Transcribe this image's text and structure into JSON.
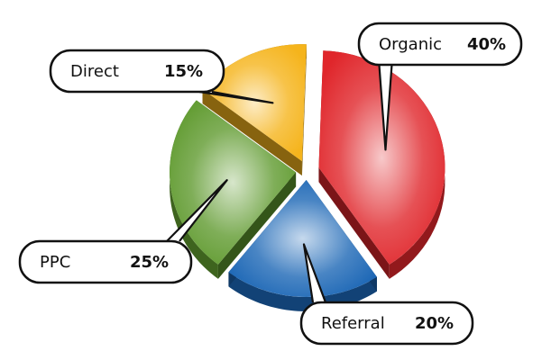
{
  "chart_data": {
    "type": "pie",
    "style": "3d-exploded",
    "title": "",
    "slices": [
      {
        "label": "Organic",
        "value": 40,
        "value_label": "40%",
        "color": "#e0262b"
      },
      {
        "label": "Referral",
        "value": 20,
        "value_label": "20%",
        "color": "#1b66b5"
      },
      {
        "label": "PPC",
        "value": 25,
        "value_label": "25%",
        "color": "#5f9a2e"
      },
      {
        "label": "Direct",
        "value": 15,
        "value_label": "15%",
        "color": "#f5b41c"
      }
    ]
  }
}
